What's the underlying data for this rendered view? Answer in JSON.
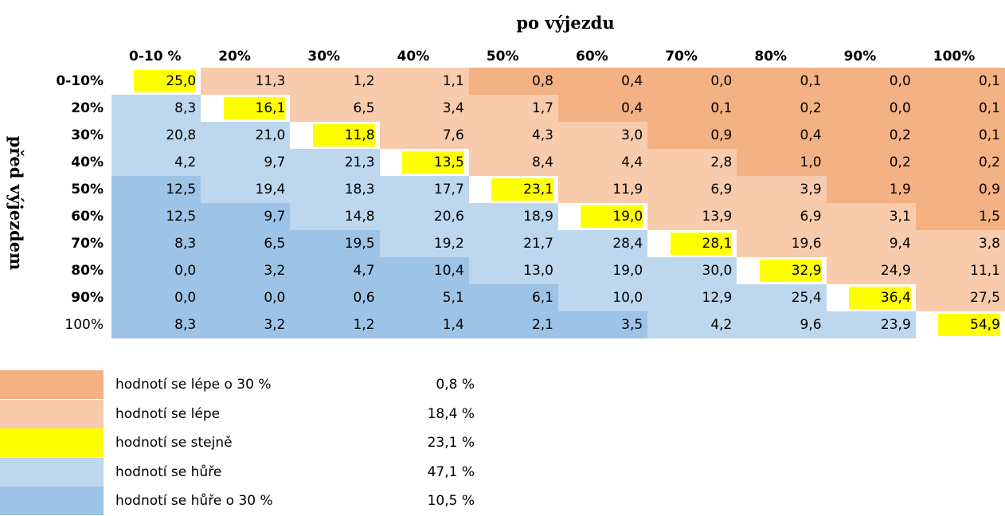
{
  "header": {
    "title": "po výjezdu",
    "row_title": "před výjezdem"
  },
  "table": {
    "columns": [
      "0-10 %",
      "20%",
      "30%",
      "40%",
      "50%",
      "60%",
      "70%",
      "80%",
      "90%",
      "100%"
    ],
    "row_labels": [
      "0-10%",
      "20%",
      "30%",
      "40%",
      "50%",
      "60%",
      "70%",
      "80%",
      "90%",
      "100%"
    ],
    "rows": [
      [
        "25,0",
        "11,3",
        "1,2",
        "1,1",
        "0,8",
        "0,4",
        "0,0",
        "0,1",
        "0,0",
        "0,1"
      ],
      [
        "8,3",
        "16,1",
        "6,5",
        "3,4",
        "1,7",
        "0,4",
        "0,1",
        "0,2",
        "0,0",
        "0,1"
      ],
      [
        "20,8",
        "21,0",
        "11,8",
        "7,6",
        "4,3",
        "3,0",
        "0,9",
        "0,4",
        "0,2",
        "0,1"
      ],
      [
        "4,2",
        "9,7",
        "21,3",
        "13,5",
        "8,4",
        "4,4",
        "2,8",
        "1,0",
        "0,2",
        "0,2"
      ],
      [
        "12,5",
        "19,4",
        "18,3",
        "17,7",
        "23,1",
        "11,9",
        "6,9",
        "3,9",
        "1,9",
        "0,9"
      ],
      [
        "12,5",
        "9,7",
        "14,8",
        "20,6",
        "18,9",
        "19,0",
        "13,9",
        "6,9",
        "3,1",
        "1,5"
      ],
      [
        "8,3",
        "6,5",
        "19,5",
        "19,2",
        "21,7",
        "28,4",
        "28,1",
        "19,6",
        "9,4",
        "3,8"
      ],
      [
        "0,0",
        "3,2",
        "4,7",
        "10,4",
        "13,0",
        "19,0",
        "30,0",
        "32,9",
        "24,9",
        "11,1"
      ],
      [
        "0,0",
        "0,0",
        "0,6",
        "5,1",
        "6,1",
        "10,0",
        "12,9",
        "25,4",
        "36,4",
        "27,5"
      ],
      [
        "8,3",
        "3,2",
        "1,2",
        "1,4",
        "2,1",
        "3,5",
        "4,2",
        "9,6",
        "23,9",
        "54,9"
      ]
    ]
  },
  "legend": [
    {
      "label": "hodnotí se lépe o 30 %",
      "value": "0,8 %",
      "color": "#f4b183"
    },
    {
      "label": "hodnotí se lépe",
      "value": "18,4 %",
      "color": "#f8cbad"
    },
    {
      "label": "hodnotí se stejně",
      "value": "23,1 %",
      "color": "#ffff00"
    },
    {
      "label": "hodnotí se hůře",
      "value": "47,1 %",
      "color": "#bdd7ee"
    },
    {
      "label": "hodnotí se hůře o 30 %",
      "value": "10,5 %",
      "color": "#9dc3e6"
    }
  ]
}
